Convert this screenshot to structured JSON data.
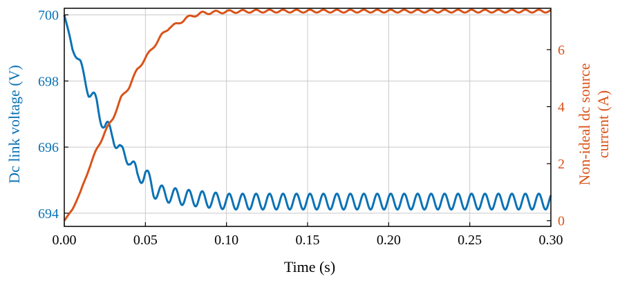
{
  "chart_data": {
    "type": "line",
    "title": "",
    "xlabel": "Time (s)",
    "ylabel_left": "Dc link voltage (V)",
    "ylabel_right_line1": "Non-ideal dc source",
    "ylabel_right_line2": "current (A)",
    "xlim": [
      0,
      0.3
    ],
    "ylim_left": [
      693.6,
      700.2
    ],
    "ylim_right": [
      -0.2,
      7.45
    ],
    "grid": true,
    "x_ticks": [
      "0.00",
      "0.05",
      "0.10",
      "0.15",
      "0.20",
      "0.25",
      "0.30"
    ],
    "y_left_ticks": [
      "694",
      "696",
      "698",
      "700"
    ],
    "y_right_ticks": [
      "0",
      "2",
      "4",
      "6"
    ],
    "colors": {
      "voltage": "#0b72b5",
      "current": "#d95319",
      "grid": "#c8c8c8",
      "axis": "#000000"
    },
    "series": [
      {
        "axis": "left",
        "x": [
          0,
          0.005,
          0.01,
          0.015,
          0.02,
          0.025,
          0.03,
          0.035,
          0.04,
          0.045,
          0.05,
          0.055,
          0.06,
          0.07,
          0.08,
          0.09,
          0.1,
          0.15,
          0.2,
          0.25,
          0.3
        ],
        "y": [
          700.0,
          699.0,
          698.5,
          697.7,
          697.3,
          696.6,
          696.4,
          695.8,
          695.7,
          695.1,
          695.2,
          694.7,
          694.6,
          694.5,
          694.45,
          694.4,
          694.35,
          694.35,
          694.35,
          694.35,
          694.35
        ],
        "ripple_amplitude": 0.24,
        "ripple_period": 0.0083
      },
      {
        "axis": "right",
        "x": [
          0,
          0.005,
          0.01,
          0.015,
          0.02,
          0.025,
          0.03,
          0.035,
          0.04,
          0.045,
          0.05,
          0.055,
          0.06,
          0.065,
          0.07,
          0.075,
          0.08,
          0.085,
          0.09,
          0.095,
          0.1,
          0.11,
          0.12,
          0.13,
          0.15,
          0.2,
          0.25,
          0.3
        ],
        "y": [
          0.0,
          0.4,
          1.0,
          1.8,
          2.5,
          3.1,
          3.6,
          4.3,
          4.7,
          5.3,
          5.7,
          6.1,
          6.5,
          6.8,
          6.9,
          7.1,
          7.2,
          7.28,
          7.3,
          7.32,
          7.33,
          7.34,
          7.35,
          7.35,
          7.35,
          7.35,
          7.35,
          7.35
        ],
        "ripple_amplitude": 0.05,
        "ripple_period": 0.0083
      }
    ]
  }
}
